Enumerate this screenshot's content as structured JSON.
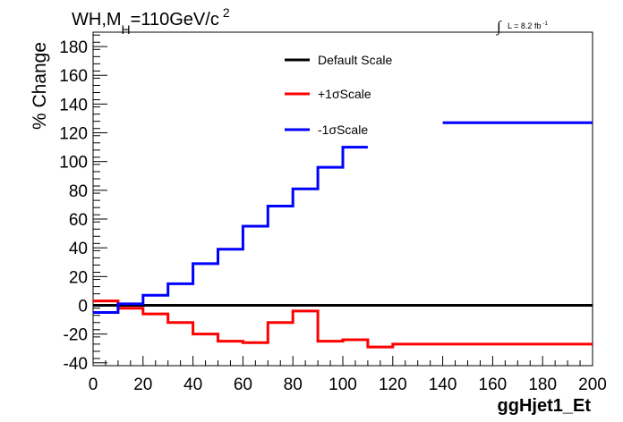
{
  "title": {
    "main": "WH,M",
    "sub": "H",
    "rest": "=110GeV/c",
    "sup": "2"
  },
  "lumi": {
    "integral": "∫",
    "text": "L = 8.2 fb",
    "sup": "-1"
  },
  "chart_data": {
    "type": "line",
    "style": "step",
    "xlabel": "ggHjet1_Et",
    "ylabel": "% Change",
    "xlim": [
      0,
      200
    ],
    "ylim": [
      -42,
      190
    ],
    "xticks": [
      0,
      20,
      40,
      60,
      80,
      100,
      120,
      140,
      160,
      180,
      200
    ],
    "yticks": [
      -40,
      -20,
      0,
      20,
      40,
      60,
      80,
      100,
      120,
      140,
      160,
      180
    ],
    "bin_edges": [
      0,
      10,
      20,
      30,
      40,
      50,
      60,
      70,
      80,
      90,
      100,
      110,
      120,
      130,
      140,
      150,
      160,
      170,
      180,
      190,
      200
    ],
    "legend_position": "top-center",
    "series": [
      {
        "name": "Default Scale",
        "color": "#000000",
        "values": [
          0,
          0,
          0,
          0,
          0,
          0,
          0,
          0,
          0,
          0,
          0,
          0,
          0,
          0,
          0,
          0,
          0,
          0,
          0,
          0
        ]
      },
      {
        "name": "+1σScale",
        "color": "#ff0000",
        "values": [
          3,
          -2,
          -6,
          -12,
          -20,
          -25,
          -26,
          -12,
          -4,
          -25,
          -24,
          -29,
          -27,
          -27,
          -27,
          -27,
          -27,
          -27,
          -27,
          -27
        ]
      },
      {
        "name": "-1σScale",
        "color": "#0000ff",
        "values": [
          -5,
          1,
          7,
          15,
          29,
          39,
          55,
          69,
          81,
          96,
          110,
          null,
          null,
          null,
          127,
          127,
          127,
          127,
          127,
          127
        ],
        "partial_from": 138
      }
    ]
  }
}
